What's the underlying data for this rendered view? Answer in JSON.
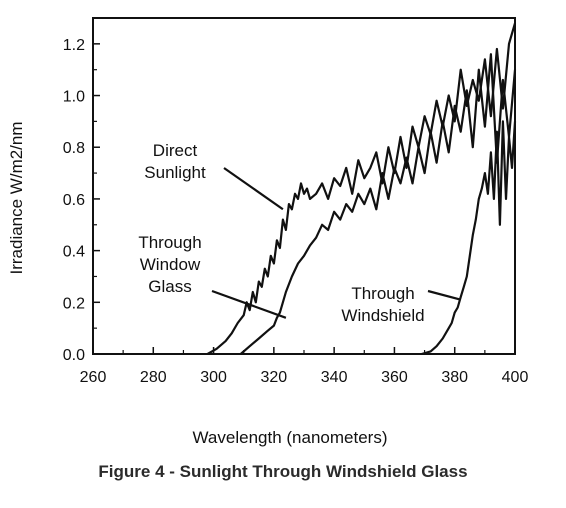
{
  "caption": "Figure 4 - Sunlight Through Windshield Glass",
  "chart_data": {
    "type": "line",
    "title": "",
    "xlabel": "Wavelength (nanometers)",
    "ylabel": "Irradiance W/m2/nm",
    "xlim": [
      260,
      400
    ],
    "ylim": [
      0,
      1.3
    ],
    "x_ticks": [
      260,
      280,
      300,
      320,
      340,
      360,
      380,
      400
    ],
    "y_ticks": [
      0.0,
      0.2,
      0.4,
      0.6,
      0.8,
      1.0,
      1.2
    ],
    "y_tick_labels": [
      "0.0",
      "0.2",
      "0.4",
      "0.6",
      "0.8",
      "1.0",
      "1.2"
    ],
    "grid": false,
    "line_color": "#111111",
    "series": [
      {
        "x": [
          298,
          301,
          304,
          306,
          308,
          310,
          311,
          312,
          313,
          314,
          315,
          316,
          317,
          318,
          319,
          320,
          321,
          322,
          323,
          324,
          325,
          326,
          327,
          328,
          329,
          330,
          331,
          332,
          334,
          336,
          338,
          340,
          342,
          344,
          346,
          348,
          350,
          352,
          354,
          356,
          358,
          360,
          362,
          364,
          366,
          368,
          370,
          372,
          374,
          376,
          378,
          380,
          382,
          384,
          386,
          388,
          390,
          392,
          394,
          396,
          398,
          400
        ],
        "values": [
          0.0,
          0.02,
          0.05,
          0.08,
          0.12,
          0.15,
          0.2,
          0.17,
          0.24,
          0.2,
          0.28,
          0.26,
          0.33,
          0.3,
          0.38,
          0.35,
          0.44,
          0.41,
          0.52,
          0.48,
          0.58,
          0.56,
          0.62,
          0.6,
          0.66,
          0.62,
          0.64,
          0.6,
          0.62,
          0.66,
          0.6,
          0.68,
          0.65,
          0.72,
          0.62,
          0.75,
          0.68,
          0.72,
          0.78,
          0.66,
          0.8,
          0.7,
          0.84,
          0.72,
          0.88,
          0.8,
          0.92,
          0.85,
          0.98,
          0.88,
          1.0,
          0.9,
          1.1,
          0.96,
          1.06,
          0.98,
          1.14,
          0.92,
          1.18,
          0.95,
          1.2,
          1.28
        ]
      },
      {
        "x": [
          309,
          312,
          315,
          318,
          320,
          321,
          322,
          324,
          326,
          328,
          330,
          332,
          334,
          336,
          338,
          340,
          342,
          344,
          346,
          348,
          350,
          352,
          354,
          356,
          358,
          360,
          362,
          364,
          366,
          368,
          370,
          372,
          374,
          376,
          378,
          380,
          382,
          384,
          386,
          388,
          390,
          392,
          394,
          396,
          398,
          400
        ],
        "values": [
          0.0,
          0.03,
          0.06,
          0.09,
          0.11,
          0.14,
          0.16,
          0.24,
          0.3,
          0.35,
          0.38,
          0.42,
          0.45,
          0.5,
          0.48,
          0.55,
          0.52,
          0.58,
          0.55,
          0.62,
          0.58,
          0.64,
          0.56,
          0.7,
          0.6,
          0.72,
          0.66,
          0.76,
          0.66,
          0.8,
          0.7,
          0.86,
          0.74,
          0.9,
          0.78,
          0.96,
          0.86,
          1.02,
          0.8,
          1.1,
          0.88,
          1.16,
          0.74,
          1.06,
          0.84,
          1.1
        ]
      },
      {
        "x": [
          369,
          372,
          374,
          376,
          378,
          379,
          380,
          381,
          382,
          383,
          384,
          385,
          386,
          387,
          388,
          389,
          390,
          391,
          392,
          393,
          394,
          395,
          396,
          397,
          398,
          399,
          400
        ],
        "values": [
          0.0,
          0.01,
          0.03,
          0.06,
          0.1,
          0.12,
          0.16,
          0.18,
          0.22,
          0.26,
          0.3,
          0.38,
          0.46,
          0.52,
          0.6,
          0.64,
          0.7,
          0.62,
          0.78,
          0.6,
          0.86,
          0.5,
          0.9,
          0.6,
          0.84,
          0.72,
          0.9
        ]
      }
    ],
    "annotations": [
      {
        "lines": [
          "Direct",
          "Sunlight"
        ],
        "target": {
          "x": 323,
          "y": 0.56
        }
      },
      {
        "lines": [
          "Through",
          "Window",
          "Glass"
        ],
        "target": {
          "x": 324,
          "y": 0.14
        }
      },
      {
        "lines": [
          "Through",
          "Windshield"
        ],
        "target": {
          "x": 382,
          "y": 0.21
        }
      }
    ]
  }
}
